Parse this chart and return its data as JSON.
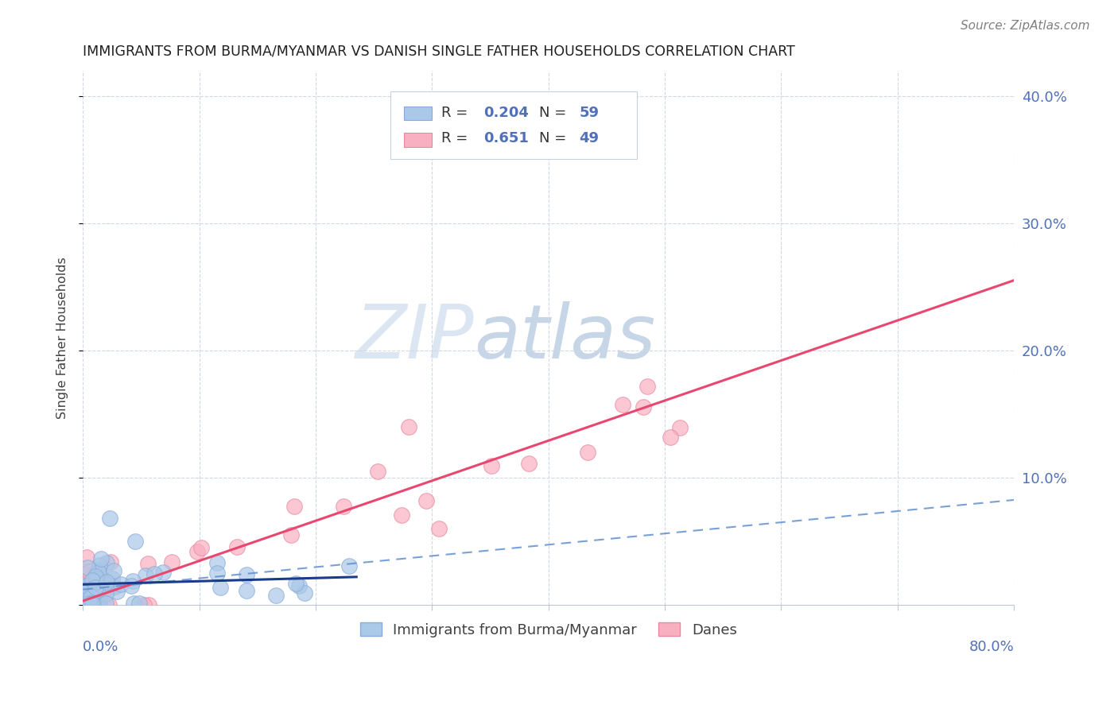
{
  "title": "IMMIGRANTS FROM BURMA/MYANMAR VS DANISH SINGLE FATHER HOUSEHOLDS CORRELATION CHART",
  "source": "Source: ZipAtlas.com",
  "ylabel": "Single Father Households",
  "xlim": [
    0,
    0.8
  ],
  "ylim": [
    0,
    0.42
  ],
  "yticks": [
    0,
    0.1,
    0.2,
    0.3,
    0.4
  ],
  "ytick_labels": [
    "",
    "10.0%",
    "20.0%",
    "30.0%",
    "40.0%"
  ],
  "blue_color": "#aac8e8",
  "blue_edge_color": "#88aad8",
  "pink_color": "#f8b0c0",
  "pink_edge_color": "#e888a0",
  "blue_line_color": "#1a3a8a",
  "blue_dash_color": "#6090d0",
  "pink_line_color": "#e84870",
  "grid_color": "#d0d8e8",
  "axis_color": "#5070b8",
  "title_color": "#202020",
  "background_color": "#ffffff",
  "watermark_zip": "ZIP",
  "watermark_atlas": "atlas",
  "source_text": "Source: ZipAtlas.com"
}
